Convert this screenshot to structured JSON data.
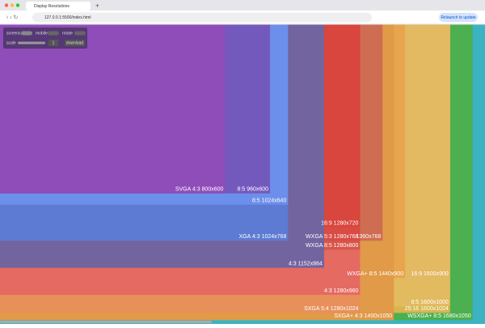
{
  "browser": {
    "tab_title": "Display Resolutions",
    "url": "127.0.0.1:5500/index.html",
    "relaunch": "Relaunch to update"
  },
  "controls": {
    "screens": "screens",
    "mobile": "mobile",
    "rotate": "rotate",
    "scale": "scale",
    "scale_value": "1",
    "download": "download"
  },
  "resolutions": [
    {
      "label": "WSXGA+ 8:5 1680x1050",
      "width": 1680,
      "height": 1050,
      "color": "#4caf50"
    },
    {
      "label": "25:16 1600x1024",
      "width": 1600,
      "height": 1024,
      "color": "#d8b64f"
    },
    {
      "label": "8:5 1600x1000",
      "width": 1600,
      "height": 1000,
      "color": "#e2bb60"
    },
    {
      "label": "16:9 1600x900",
      "width": 1600,
      "height": 900,
      "color": "#e3b962"
    },
    {
      "label": "WXGA+ 8:5 1440x900",
      "width": 1440,
      "height": 900,
      "color": "#e7a54e"
    },
    {
      "label": "SXGA+ 4:3 1400x1050",
      "width": 1400,
      "height": 1050,
      "color": "#e09a48"
    },
    {
      "label": "1360x768",
      "width": 1360,
      "height": 768,
      "color": "#cf6d52"
    },
    {
      "label": "SXGA 5:4 1280x1024",
      "width": 1280,
      "height": 1024,
      "color": "#e8905a"
    },
    {
      "label": "4:3 1280x960",
      "width": 1280,
      "height": 960,
      "color": "#e46a62"
    },
    {
      "label": "WXGA 8:5 1280x800",
      "width": 1280,
      "height": 800,
      "color": "#d9554a"
    },
    {
      "label": "WXGA 5:3 1280x768",
      "width": 1280,
      "height": 768,
      "color": "#d84c44"
    },
    {
      "label": "16:9 1280x720",
      "width": 1280,
      "height": 720,
      "color": "#d8463e"
    },
    {
      "label": "4:3 1152x864",
      "width": 1152,
      "height": 864,
      "color": "#72649f"
    },
    {
      "label": "XGA 4:3 1024x768",
      "width": 1024,
      "height": 768,
      "color": "#5d7bd2"
    },
    {
      "label": "8:5 1024x640",
      "width": 1024,
      "height": 640,
      "color": "#6b8fea"
    },
    {
      "label": "8:5 960x600",
      "width": 960,
      "height": 600,
      "color": "#7459bd"
    },
    {
      "label": "SVGA 4:3 800x600",
      "width": 800,
      "height": 600,
      "color": "#8e4db8"
    }
  ]
}
